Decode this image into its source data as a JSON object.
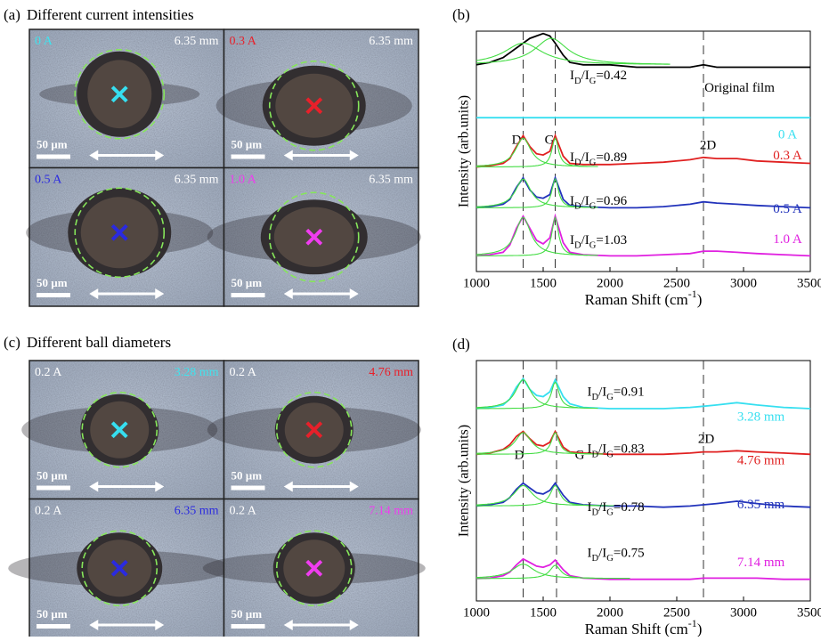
{
  "panels": [
    {
      "label": "(a)",
      "title": "Different current intensities",
      "images": [
        {
          "current": "0 A",
          "current_color": "#3fe3ee",
          "diameter": "6.35 mm",
          "diameter_color": "#ffffff",
          "mark_color": "#36dff0",
          "scale": "50 µm"
        },
        {
          "current": "0.3 A",
          "current_color": "#e8202a",
          "diameter": "6.35 mm",
          "diameter_color": "#ffffff",
          "mark_color": "#e8202a",
          "scale": "50 µm"
        },
        {
          "current": "0.5 A",
          "current_color": "#2a2ae0",
          "diameter": "6.35 mm",
          "diameter_color": "#ffffff",
          "mark_color": "#2a2ae0",
          "scale": "50 µm"
        },
        {
          "current": "1.0 A",
          "current_color": "#f03cf0",
          "diameter": "6.35 mm",
          "diameter_color": "#ffffff",
          "mark_color": "#f03cf0",
          "scale": "50 µm"
        }
      ]
    },
    {
      "label": "(c)",
      "title": "Different ball diameters",
      "images": [
        {
          "current": "0.2 A",
          "current_color": "#ffffff",
          "diameter": "3.28 mm",
          "diameter_color": "#3fe3ee",
          "mark_color": "#36dff0",
          "scale": "50 µm"
        },
        {
          "current": "0.2 A",
          "current_color": "#ffffff",
          "diameter": "4.76 mm",
          "diameter_color": "#e8202a",
          "mark_color": "#e8202a",
          "scale": "50 µm"
        },
        {
          "current": "0.2 A",
          "current_color": "#ffffff",
          "diameter": "6.35 mm",
          "diameter_color": "#2a2ae0",
          "mark_color": "#2a2ae0",
          "scale": "50 µm"
        },
        {
          "current": "0.2 A",
          "current_color": "#ffffff",
          "diameter": "7.14 mm",
          "diameter_color": "#f03cf0",
          "mark_color": "#f03cf0",
          "scale": "50 µm"
        }
      ]
    }
  ],
  "chart_data": [
    {
      "type": "line",
      "label": "(b)",
      "xlabel": "Raman Shift (cm-1)",
      "ylabel": "Intensity (arb.units)",
      "xlim": [
        1000,
        3500
      ],
      "xticks": [
        1000,
        1500,
        2000,
        2500,
        3000,
        3500
      ],
      "ylim": [
        0,
        10
      ],
      "x": [
        1000,
        1100,
        1200,
        1250,
        1300,
        1350,
        1400,
        1450,
        1500,
        1550,
        1590,
        1650,
        1700,
        1800,
        2000,
        2200,
        2400,
        2600,
        2700,
        2800,
        2950,
        3100,
        3300,
        3500
      ],
      "dashed_lines": [
        1350,
        1590,
        2700
      ],
      "peak_labels": [
        "D",
        "G",
        "2D"
      ],
      "fit_color": "#44dd44",
      "series": [
        {
          "name": "Original film",
          "color": "#000000",
          "ratio_label": "ID/IG=0.42",
          "values": [
            8.6,
            8.7,
            8.9,
            9.1,
            9.3,
            9.5,
            9.7,
            9.8,
            9.9,
            9.8,
            9.5,
            9.0,
            8.7,
            8.6,
            8.6,
            8.5,
            8.5,
            8.5,
            8.6,
            8.5,
            8.5,
            8.5,
            8.5,
            8.5
          ],
          "fits": [
            {
              "center": 1350,
              "height": 0.9,
              "width": 350
            },
            {
              "center": 1560,
              "height": 1.1,
              "width": 300
            }
          ]
        },
        {
          "name": "0 A",
          "color": "#36dff0",
          "values": [
            6.4,
            6.4,
            6.4,
            6.4,
            6.4,
            6.4,
            6.4,
            6.4,
            6.4,
            6.4,
            6.4,
            6.4,
            6.4,
            6.4,
            6.4,
            6.4,
            6.4,
            6.4,
            6.4,
            6.4,
            6.4,
            6.4,
            6.4,
            6.4
          ]
        },
        {
          "name": "0.3 A",
          "color": "#e02020",
          "ratio_label": "ID/IG=0.89",
          "values": [
            4.35,
            4.4,
            4.5,
            4.7,
            5.2,
            5.65,
            5.2,
            4.9,
            4.85,
            5.0,
            5.65,
            4.8,
            4.5,
            4.45,
            4.45,
            4.5,
            4.55,
            4.65,
            4.75,
            4.7,
            4.7,
            4.6,
            4.55,
            4.5
          ],
          "fits": [
            {
              "center": 1350,
              "height": 1.2,
              "width": 140
            },
            {
              "center": 1590,
              "height": 1.2,
              "width": 60
            }
          ]
        },
        {
          "name": "0.5 A",
          "color": "#2233bb",
          "ratio_label": "ID/IG=0.96",
          "values": [
            2.65,
            2.7,
            2.8,
            3.0,
            3.5,
            3.9,
            3.4,
            3.1,
            3.05,
            3.2,
            3.9,
            3.0,
            2.75,
            2.7,
            2.65,
            2.65,
            2.7,
            2.8,
            2.9,
            2.85,
            2.8,
            2.75,
            2.7,
            2.65
          ],
          "fits": [
            {
              "center": 1350,
              "height": 1.2,
              "width": 140
            },
            {
              "center": 1590,
              "height": 1.2,
              "width": 60
            }
          ]
        },
        {
          "name": "1.0 A",
          "color": "#e020e0",
          "ratio_label": "ID/IG=1.03",
          "values": [
            0.65,
            0.7,
            0.8,
            1.1,
            1.8,
            2.3,
            1.8,
            1.3,
            1.15,
            1.4,
            2.3,
            1.2,
            0.8,
            0.7,
            0.65,
            0.65,
            0.7,
            0.75,
            0.85,
            0.85,
            0.8,
            0.75,
            0.7,
            0.65
          ],
          "fits": [
            {
              "center": 1350,
              "height": 1.6,
              "width": 140
            },
            {
              "center": 1590,
              "height": 1.6,
              "width": 60
            }
          ]
        }
      ]
    },
    {
      "type": "line",
      "label": "(d)",
      "xlabel": "Raman Shift (cm-1)",
      "ylabel": "Intensity (arb.units)",
      "xlim": [
        1000,
        3500
      ],
      "xticks": [
        1000,
        1500,
        2000,
        2500,
        3000,
        3500
      ],
      "ylim": [
        0,
        10
      ],
      "x": [
        1000,
        1100,
        1200,
        1250,
        1300,
        1350,
        1400,
        1450,
        1500,
        1550,
        1590,
        1650,
        1700,
        1800,
        2000,
        2200,
        2400,
        2600,
        2700,
        2800,
        2950,
        3100,
        3300,
        3500
      ],
      "dashed_lines": [
        1350,
        1600,
        2700
      ],
      "peak_labels": [
        "D",
        "G",
        "2D"
      ],
      "fit_color": "#44dd44",
      "series": [
        {
          "name": "3.28 mm",
          "color": "#36dff0",
          "ratio_label": "ID/IG=0.91",
          "values": [
            8.0,
            8.05,
            8.15,
            8.4,
            8.9,
            9.25,
            8.8,
            8.55,
            8.5,
            8.7,
            9.2,
            8.5,
            8.2,
            8.05,
            8.0,
            8.0,
            8.0,
            8.05,
            8.1,
            8.15,
            8.25,
            8.15,
            8.05,
            8.0
          ],
          "fits": [
            {
              "center": 1350,
              "height": 1.2,
              "width": 140
            },
            {
              "center": 1590,
              "height": 1.1,
              "width": 70
            }
          ]
        },
        {
          "name": "4.76 mm",
          "color": "#e02020",
          "ratio_label": "ID/IG=0.83",
          "values": [
            6.1,
            6.15,
            6.3,
            6.5,
            6.85,
            7.05,
            6.75,
            6.5,
            6.45,
            6.6,
            7.05,
            6.4,
            6.2,
            6.15,
            6.1,
            6.1,
            6.1,
            6.15,
            6.2,
            6.2,
            6.25,
            6.2,
            6.15,
            6.1
          ],
          "fits": [
            {
              "center": 1350,
              "height": 0.9,
              "width": 150
            },
            {
              "center": 1590,
              "height": 0.9,
              "width": 70
            }
          ]
        },
        {
          "name": "6.35 mm",
          "color": "#2233bb",
          "ratio_label": "ID/IG=0.78",
          "values": [
            3.95,
            4.0,
            4.1,
            4.3,
            4.65,
            4.9,
            4.7,
            4.5,
            4.45,
            4.6,
            4.9,
            4.4,
            4.1,
            4.0,
            3.95,
            3.95,
            3.9,
            3.95,
            4.0,
            4.05,
            4.15,
            4.05,
            3.95,
            3.9
          ],
          "fits": [
            {
              "center": 1350,
              "height": 0.85,
              "width": 170
            },
            {
              "center": 1590,
              "height": 0.85,
              "width": 90
            }
          ]
        },
        {
          "name": "7.14 mm",
          "color": "#e020e0",
          "ratio_label": "ID/IG=0.75",
          "values": [
            0.93,
            0.95,
            1.05,
            1.2,
            1.5,
            1.75,
            1.6,
            1.45,
            1.4,
            1.5,
            1.7,
            1.3,
            1.05,
            0.95,
            0.9,
            0.9,
            0.9,
            0.9,
            0.95,
            0.95,
            0.95,
            0.95,
            0.9,
            0.9
          ],
          "fits": [
            {
              "center": 1350,
              "height": 0.6,
              "width": 200
            },
            {
              "center": 1590,
              "height": 0.55,
              "width": 100
            }
          ]
        }
      ]
    }
  ]
}
